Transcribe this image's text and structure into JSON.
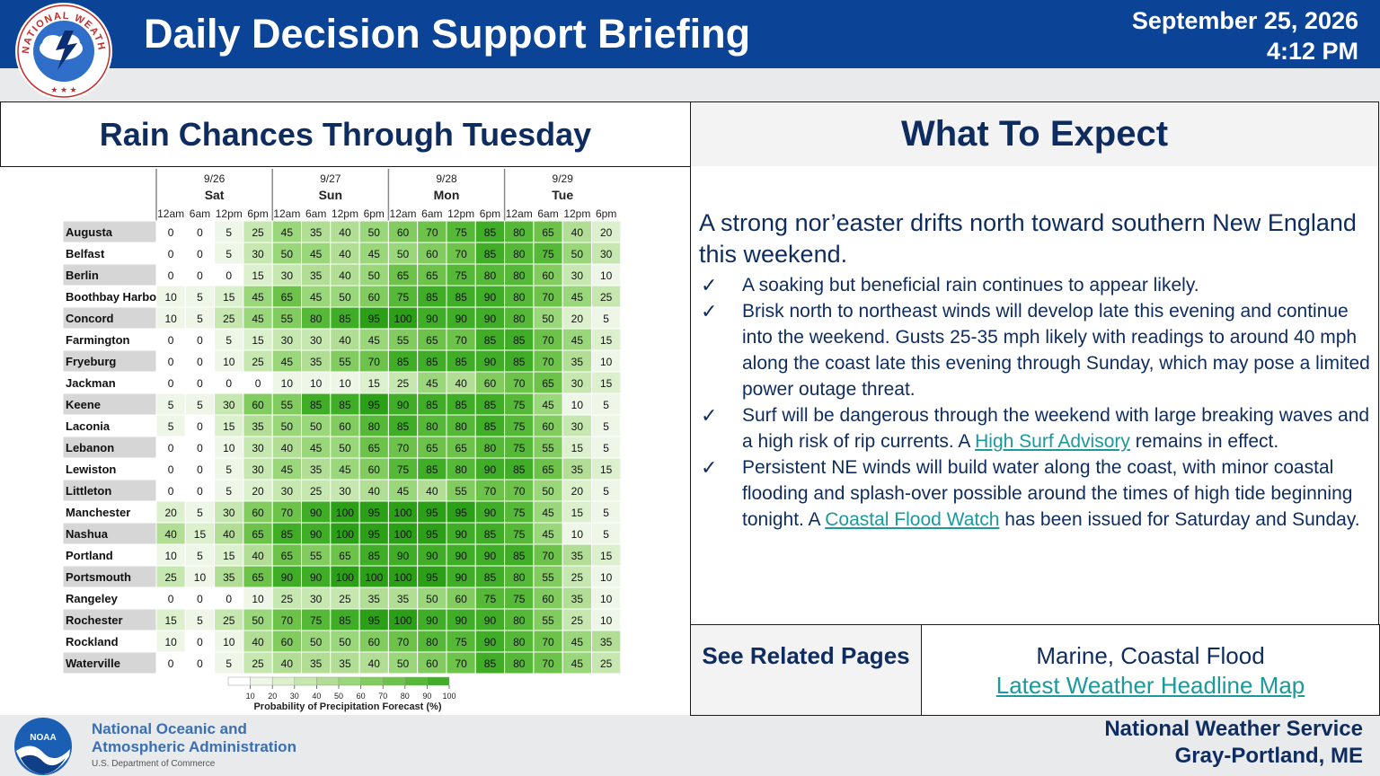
{
  "header": {
    "title": "Daily Decision Support Briefing",
    "date": "September 25, 2026",
    "time": "4:12 PM",
    "logo_text": "NATIONAL WEATHER SERVICE"
  },
  "left_panel": {
    "title": "Rain Chances Through Tuesday"
  },
  "right_panel": {
    "title": "What To Expect",
    "lead": "A strong nor’easter drifts north toward southern New England this weekend.",
    "bullets": [
      {
        "mark": "✓",
        "text": "A soaking but beneficial rain continues to appear likely."
      },
      {
        "mark": "✓",
        "text": "Brisk north to northeast winds will develop late this evening and continue into the weekend. Gusts 25-35 mph likely with readings to around 40 mph along the coast late this evening through Sunday, which may pose a limited power outage threat."
      },
      {
        "mark": "✓",
        "before": "Surf will be dangerous through the weekend with large breaking waves and a high risk of rip currents. A ",
        "link": "High Surf Advisory",
        "after": " remains in effect."
      },
      {
        "mark": "✓",
        "before": "Persistent NE winds will build water along the coast, with minor coastal flooding and splash-over possible around the times of high tide beginning tonight. A ",
        "link": "Coastal Flood Watch",
        "after": " has been issued for Saturday and Sunday."
      }
    ]
  },
  "related": {
    "label": "See Related Pages",
    "line1": "Marine, Coastal Flood",
    "link": "Latest Weather Headline Map"
  },
  "footer": {
    "noaa_line1": "National Oceanic and",
    "noaa_line2": "Atmospheric Administration",
    "noaa_sub": "U.S. Department of Commerce",
    "noaa_badge": "NOAA",
    "office_line1": "National Weather Service",
    "office_line2": "Gray-Portland, ME"
  },
  "chart_data": {
    "type": "heatmap",
    "title": "",
    "days": [
      {
        "date": "9/26",
        "day": "Sat"
      },
      {
        "date": "9/27",
        "day": "Sun"
      },
      {
        "date": "9/28",
        "day": "Mon"
      },
      {
        "date": "9/29",
        "day": "Tue"
      }
    ],
    "times": [
      "12am",
      "6am",
      "12pm",
      "6pm"
    ],
    "rows": [
      "Augusta",
      "Belfast",
      "Berlin",
      "Boothbay Harbor",
      "Concord",
      "Farmington",
      "Fryeburg",
      "Jackman",
      "Keene",
      "Laconia",
      "Lebanon",
      "Lewiston",
      "Littleton",
      "Manchester",
      "Nashua",
      "Portland",
      "Portsmouth",
      "Rangeley",
      "Rochester",
      "Rockland",
      "Waterville"
    ],
    "values": [
      [
        0,
        0,
        5,
        25,
        45,
        35,
        40,
        50,
        60,
        70,
        75,
        85,
        80,
        65,
        40,
        20
      ],
      [
        0,
        0,
        5,
        30,
        50,
        45,
        40,
        45,
        50,
        60,
        70,
        85,
        80,
        75,
        50,
        30
      ],
      [
        0,
        0,
        0,
        15,
        30,
        35,
        40,
        50,
        65,
        65,
        75,
        80,
        80,
        60,
        30,
        10
      ],
      [
        10,
        5,
        15,
        45,
        65,
        45,
        50,
        60,
        75,
        85,
        85,
        90,
        80,
        70,
        45,
        25
      ],
      [
        10,
        5,
        25,
        45,
        55,
        80,
        85,
        95,
        100,
        90,
        90,
        90,
        80,
        50,
        20,
        5
      ],
      [
        0,
        0,
        5,
        15,
        30,
        30,
        40,
        45,
        55,
        65,
        70,
        85,
        85,
        70,
        45,
        15
      ],
      [
        0,
        0,
        10,
        25,
        45,
        35,
        55,
        70,
        85,
        85,
        85,
        90,
        85,
        70,
        35,
        10
      ],
      [
        0,
        0,
        0,
        0,
        10,
        10,
        10,
        15,
        25,
        45,
        40,
        60,
        70,
        65,
        30,
        15
      ],
      [
        5,
        5,
        30,
        60,
        55,
        85,
        85,
        95,
        90,
        85,
        85,
        85,
        75,
        45,
        10,
        5
      ],
      [
        5,
        0,
        15,
        35,
        50,
        50,
        60,
        80,
        85,
        80,
        80,
        85,
        75,
        60,
        30,
        5
      ],
      [
        0,
        0,
        10,
        30,
        40,
        45,
        50,
        65,
        70,
        65,
        65,
        80,
        75,
        55,
        15,
        5
      ],
      [
        0,
        0,
        5,
        30,
        45,
        35,
        45,
        60,
        75,
        85,
        80,
        90,
        85,
        65,
        35,
        15
      ],
      [
        0,
        0,
        5,
        20,
        30,
        25,
        30,
        40,
        45,
        40,
        55,
        70,
        70,
        50,
        20,
        5
      ],
      [
        20,
        5,
        30,
        60,
        70,
        90,
        100,
        95,
        100,
        95,
        95,
        90,
        75,
        45,
        15,
        5
      ],
      [
        40,
        15,
        40,
        65,
        85,
        90,
        100,
        95,
        100,
        95,
        90,
        85,
        75,
        45,
        10,
        5
      ],
      [
        10,
        5,
        15,
        40,
        65,
        55,
        65,
        85,
        90,
        90,
        90,
        90,
        85,
        70,
        35,
        15
      ],
      [
        25,
        10,
        35,
        65,
        90,
        90,
        100,
        100,
        100,
        95,
        90,
        85,
        80,
        55,
        25,
        10
      ],
      [
        0,
        0,
        0,
        10,
        25,
        30,
        25,
        35,
        35,
        50,
        60,
        75,
        75,
        60,
        35,
        10
      ],
      [
        15,
        5,
        25,
        50,
        70,
        75,
        85,
        95,
        100,
        90,
        90,
        90,
        80,
        55,
        25,
        10
      ],
      [
        10,
        0,
        10,
        40,
        60,
        50,
        50,
        60,
        70,
        80,
        75,
        90,
        80,
        70,
        45,
        35
      ],
      [
        0,
        0,
        5,
        25,
        40,
        35,
        35,
        40,
        50,
        60,
        70,
        85,
        80,
        70,
        45,
        25
      ]
    ],
    "legend": {
      "ticks": [
        10,
        20,
        30,
        40,
        50,
        60,
        70,
        80,
        90,
        100
      ],
      "label": "Probability of Precipitation Forecast (%)"
    },
    "colors": [
      "#ffffff",
      "#eef7e7",
      "#dcf0cd",
      "#c6e8b0",
      "#b1de94",
      "#9ad67a",
      "#82cc5f",
      "#6dc24a",
      "#55b836",
      "#3fad25",
      "#2b9f16"
    ]
  }
}
